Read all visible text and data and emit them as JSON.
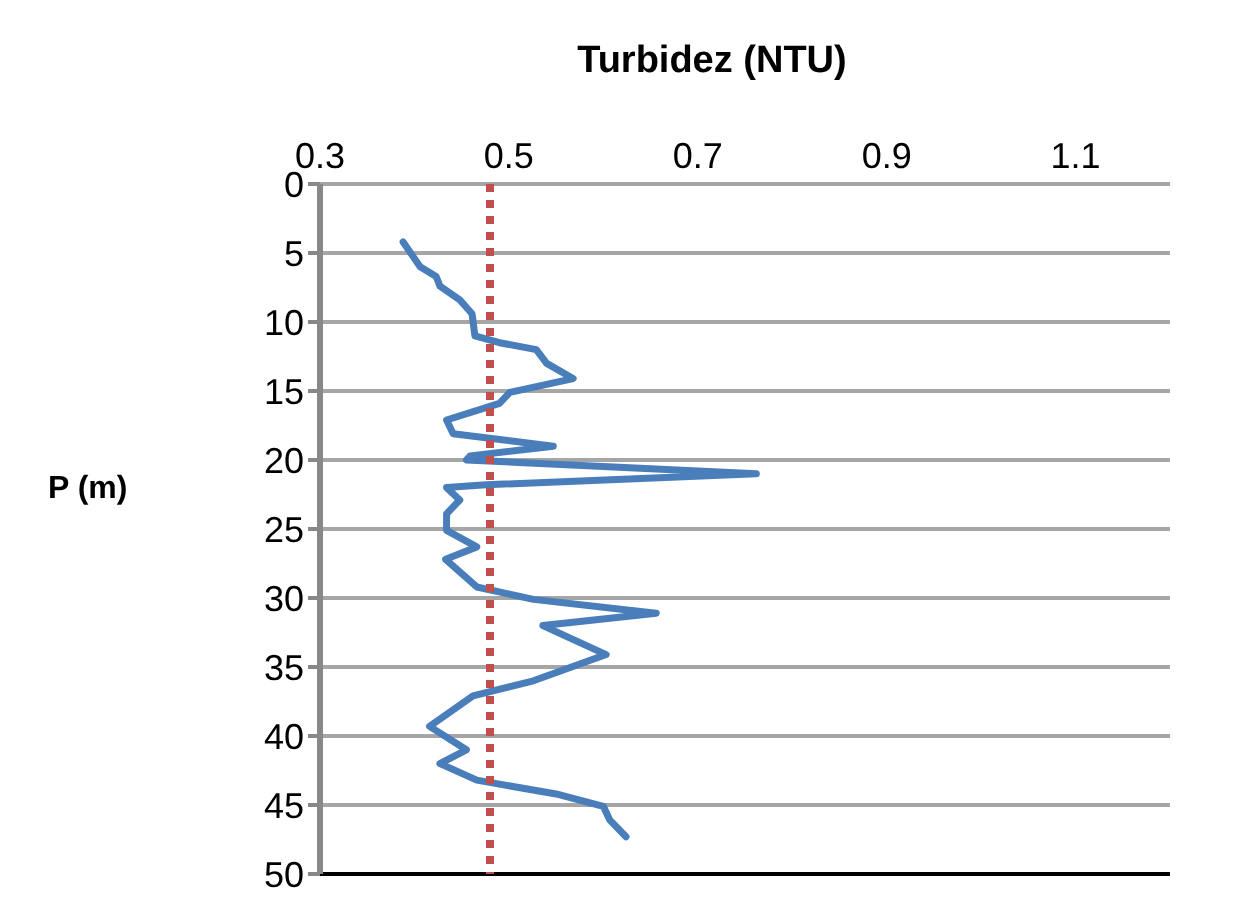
{
  "chart_data": {
    "type": "line",
    "orientation": "horizontal",
    "xlabel": "Turbidez (NTU)",
    "ylabel": "P (m)",
    "xlim": [
      0.3,
      1.2
    ],
    "xticks": [
      0.3,
      0.5,
      0.7,
      0.9,
      1.1
    ],
    "ylim": [
      50,
      0
    ],
    "yticks": [
      0,
      5,
      10,
      15,
      20,
      25,
      30,
      35,
      40,
      45,
      50
    ],
    "grid": "y",
    "marker": "none",
    "line_style": "solid",
    "x": [
      4.2,
      5.3,
      6.0,
      6.7,
      7.4,
      8.4,
      9.4,
      11.0,
      11.5,
      12.0,
      13.0,
      14.1,
      15.1,
      15.9,
      17.1,
      18.1,
      19.0,
      19.7,
      20.0,
      21.0,
      21.8,
      22.0,
      22.9,
      23.9,
      25.1,
      26.3,
      27.2,
      29.2,
      30.1,
      31.1,
      32.0,
      34.1,
      36.0,
      37.1,
      39.3,
      41.0,
      42.0,
      43.2,
      44.2,
      45.1,
      46.1,
      47.3
    ],
    "series": [
      {
        "color": "#4a7ebb",
        "values": [
          0.388,
          0.399,
          0.406,
          0.423,
          0.427,
          0.448,
          0.461,
          0.464,
          0.49,
          0.529,
          0.54,
          0.568,
          0.501,
          0.49,
          0.434,
          0.441,
          0.547,
          0.459,
          0.455,
          0.762,
          0.476,
          0.434,
          0.448,
          0.434,
          0.434,
          0.466,
          0.433,
          0.466,
          0.526,
          0.656,
          0.536,
          0.603,
          0.526,
          0.462,
          0.416,
          0.455,
          0.427,
          0.466,
          0.55,
          0.6,
          0.607,
          0.624
        ]
      }
    ],
    "ref_lines": [
      {
        "axis": "x",
        "value": 0.48,
        "color": "#c0504d",
        "line_style": "dotted"
      }
    ]
  }
}
